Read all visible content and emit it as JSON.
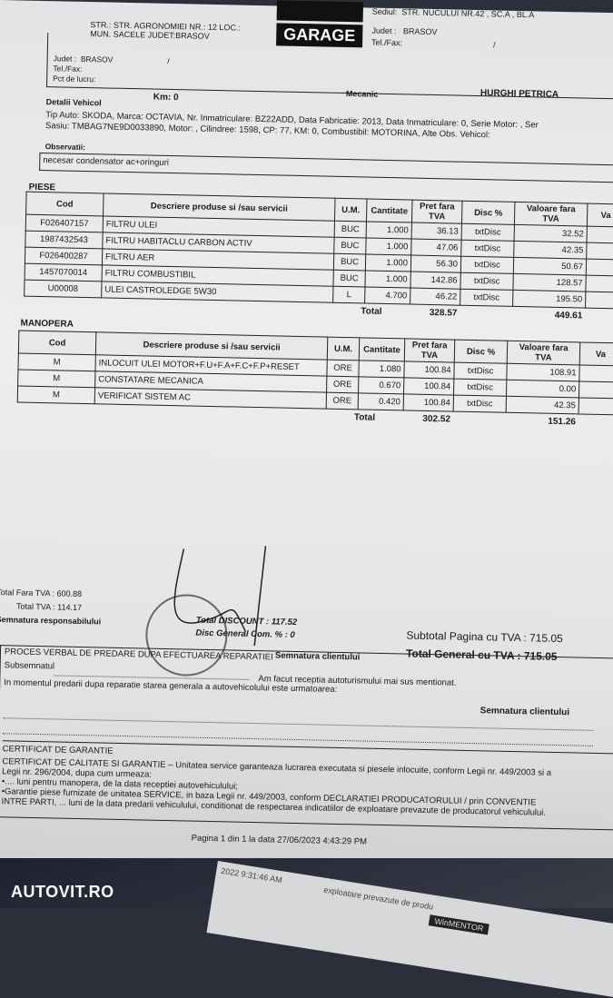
{
  "header": {
    "client_street": "STR.: STR. AGRONOMIEI NR.: 12 LOC.:",
    "client_city": "MUN. SACELE  JUDET:BRASOV",
    "logo_text": "GARAGE",
    "sediu_label": "Sediul:",
    "sediu_value": "STR. NUCULUI NR.42 , SC.A , BL.A",
    "judet_label": "Judet :",
    "judet_value": "BRASOV",
    "telfax_label": "Tel./Fax:",
    "client_judet_label": "Judet :",
    "client_judet_value": "BRASOV",
    "client_telfax_label": "Tel./Fax:",
    "pct_lucru_label": "Pct de lucru:",
    "slash": "/"
  },
  "vehicle": {
    "details_label": "Detalii Vehicol",
    "km": "Km: 0",
    "mecanic_label": "Mecanic",
    "mecanic_name": "HURGHI PETRICA",
    "line1": "Tip Auto: SKODA, Marca: OCTAVIA, Nr. Inmatriculare: BZ22ADD, Data Fabricatie: 2013, Data Inmatriculare: 0, Serie Motor: , Ser",
    "line2": "Sasiu: TMBAG7NE9D0033890, Motor: , Cilindree: 1598, CP: 77, KM: 0, Combustibil: MOTORINA, Alte Obs. Vehicol:",
    "obs_label": "Observatii:",
    "obs_value": "necesar condensator ac+oringuri"
  },
  "columns": [
    "Cod",
    "Descriere produse si /sau servicii",
    "U.M.",
    "Cantitate",
    "Pret fara TVA",
    "Disc %",
    "Valoare fara TVA",
    "Va"
  ],
  "piese": {
    "title": "PIESE",
    "rows": [
      {
        "cod": "F026407157",
        "desc": "FILTRU ULEI",
        "um": "BUC",
        "qty": "1.000",
        "pret": "36.13",
        "disc": "txtDisc",
        "val": "32.52"
      },
      {
        "cod": "1987432543",
        "desc": "FILTRU HABITACLU CARBON ACTIV",
        "um": "BUC",
        "qty": "1.000",
        "pret": "47.06",
        "disc": "txtDisc",
        "val": "42.35"
      },
      {
        "cod": "F026400287",
        "desc": "FILTRU AER",
        "um": "BUC",
        "qty": "1.000",
        "pret": "56.30",
        "disc": "txtDisc",
        "val": "50.67"
      },
      {
        "cod": "1457070014",
        "desc": "FILTRU COMBUSTIBIL",
        "um": "BUC",
        "qty": "1.000",
        "pret": "142.86",
        "disc": "txtDisc",
        "val": "128.57"
      },
      {
        "cod": "U00008",
        "desc": "ULEI CASTROLEDGE 5W30",
        "um": "L",
        "qty": "4.700",
        "pret": "46.22",
        "disc": "txtDisc",
        "val": "195.50"
      }
    ],
    "total_label": "Total",
    "total_pret": "328.57",
    "total_val": "449.61"
  },
  "manopera": {
    "title": "MANOPERA",
    "rows": [
      {
        "cod": "M",
        "desc": "INLOCUIT ULEI MOTOR+F.U+F.A+F.C+F.P+RESET",
        "um": "ORE",
        "qty": "1.080",
        "pret": "100.84",
        "disc": "txtDisc",
        "val": "108.91"
      },
      {
        "cod": "M",
        "desc": "CONSTATARE MECANICA",
        "um": "ORE",
        "qty": "0.670",
        "pret": "100.84",
        "disc": "txtDisc",
        "val": "0.00"
      },
      {
        "cod": "M",
        "desc": "VERIFICAT SISTEM AC",
        "um": "ORE",
        "qty": "0.420",
        "pret": "100.84",
        "disc": "txtDisc",
        "val": "42.35"
      }
    ],
    "total_label": "Total",
    "total_pret": "302.52",
    "total_val": "151.26"
  },
  "totals": {
    "fara_tva": "Total  Fara TVA : 600.88",
    "tva": "Total TVA : 114.17",
    "discount": "Total DISCOUNT : 117.52",
    "disc_general": "Disc General Com. % : 0",
    "semn_resp": "Semnatura responsabilului",
    "semn_client": "Semnatura clientului",
    "subtotal": "Subtotal Pagina cu TVA : 715.05",
    "general_label": "Total  General cu TVA :",
    "general_value": "715.05"
  },
  "proces": {
    "title": "PROCES VERBAL DE PREDARE DUPA EFECTUAREA REPARATIEI",
    "subsemnatul": "Subsemnatul",
    "receptie": "Am facut receptia autoturismului mai sus mentionat.",
    "stare": "In momentul predarii dupa reparatie starea generala a autovehicolului este urmatoarea:",
    "semn_client": "Semnatura clientului"
  },
  "garantie": {
    "title": "CERTIFICAT DE GARANTIE",
    "l1": "CERTIFICAT DE CALITATE SI GARANTIE – Unitatea service garanteaza lucrarea executata si piesele inlocuite, conform Legii nr. 449/2003 si a",
    "l2": "Legii nr. 296/2004, dupa cum urmeaza:",
    "l3": "•....  luni pentru manopera, de la data receptiei autovehiculului;",
    "l4": "•Garantie piese furnizate de unitatea SERVICE, in baza Legii nr. 449/2003, conform DECLARATIEI PRODUCATORULUI / prin CONVENTIE",
    "l5": "INTRE PARTI, ... luni de la data predarii vehiculului, conditionat de respectarea indicatiilor de exploatare prevazute de producatorul vehiculului."
  },
  "footer": {
    "page": "Pagina 1 din 1 la data 27/06/2023 4:43:29 PM",
    "slip_time": "2022 9:31:46 AM",
    "slip_text": "exploatare prevazute de produ",
    "winmentor": "WinMENTOR"
  },
  "watermark": "AUTOVIT.RO"
}
